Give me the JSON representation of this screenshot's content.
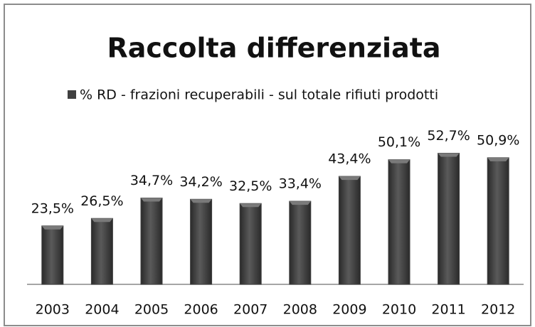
{
  "chart_data": {
    "type": "bar",
    "title": "Raccolta differenziata",
    "categories": [
      "2003",
      "2004",
      "2005",
      "2006",
      "2007",
      "2008",
      "2009",
      "2010",
      "2011",
      "2012"
    ],
    "series": [
      {
        "name": "% RD - frazioni recuperabili - sul totale rifiuti prodotti",
        "color": "#404040",
        "values": [
          23.5,
          26.5,
          34.7,
          34.2,
          32.5,
          33.4,
          43.4,
          50.1,
          52.7,
          50.9
        ],
        "value_labels": [
          "23,5%",
          "26,5%",
          "34,7%",
          "34,2%",
          "32,5%",
          "33,4%",
          "43,4%",
          "50,1%",
          "52,7%",
          "50,9%"
        ]
      }
    ],
    "legend": "top"
  }
}
